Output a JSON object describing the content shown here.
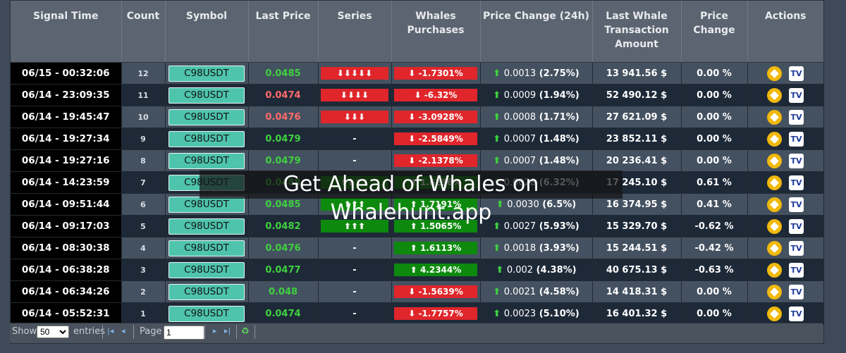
{
  "table": {
    "columns": [
      "Signal Time",
      "Count",
      "Symbol",
      "Last Price",
      "Series",
      "Whales Purchases",
      "Price Change (24h)",
      "Last Whale Transaction Amount",
      "Price Change",
      "Actions"
    ],
    "rows": [
      {
        "time": "06/15 - 00:32:06",
        "count": "12",
        "symbol": "C98USDT",
        "price": "0.0485",
        "priceColor": "#3fd13f",
        "series": "⬇⬇⬇⬇⬇",
        "seriesColor": "red",
        "purch": "⬇ -1.7301%",
        "purchColor": "red",
        "chgVal": "0.0013",
        "chgPct": "(2.75%)",
        "amount": "13 941.56 $",
        "pchg": "0.00 %"
      },
      {
        "time": "06/14 - 23:09:35",
        "count": "11",
        "symbol": "C98USDT",
        "price": "0.0474",
        "priceColor": "#ff6b6b",
        "series": "⬇⬇⬇⬇",
        "seriesColor": "red",
        "purch": "⬇ -6.32%",
        "purchColor": "red",
        "chgVal": "0.0009",
        "chgPct": "(1.94%)",
        "amount": "52 490.12 $",
        "pchg": "0.00 %"
      },
      {
        "time": "06/14 - 19:45:47",
        "count": "10",
        "symbol": "C98USDT",
        "price": "0.0476",
        "priceColor": "#ff6b6b",
        "series": "⬇⬇⬇",
        "seriesColor": "red",
        "purch": "⬇ -3.0928%",
        "purchColor": "red",
        "chgVal": "0.0008",
        "chgPct": "(1.71%)",
        "amount": "27 621.09 $",
        "pchg": "0.00 %"
      },
      {
        "time": "06/14 - 19:27:34",
        "count": "9",
        "symbol": "C98USDT",
        "price": "0.0479",
        "priceColor": "#3fd13f",
        "series": "-",
        "seriesColor": "none",
        "purch": "⬇ -2.5849%",
        "purchColor": "red",
        "chgVal": "0.0007",
        "chgPct": "(1.48%)",
        "amount": "23 852.11 $",
        "pchg": "0.00 %"
      },
      {
        "time": "06/14 - 19:27:16",
        "count": "8",
        "symbol": "C98USDT",
        "price": "0.0479",
        "priceColor": "#3fd13f",
        "series": "-",
        "seriesColor": "none",
        "purch": "⬇ -2.1378%",
        "purchColor": "red",
        "chgVal": "0.0007",
        "chgPct": "(1.48%)",
        "amount": "20 236.41 $",
        "pchg": "0.00 %"
      },
      {
        "time": "06/14 - 14:23:59",
        "count": "7",
        "symbol": "C98USDT",
        "price": "0.0488",
        "priceColor": "#3fd13f",
        "series": "⬆⬆⬆⬆",
        "seriesColor": "green",
        "purch": "⬆ 1.6236%",
        "purchColor": "green",
        "chgVal": "0.0028",
        "chgPct": "(6.32%)",
        "amount": "17 245.10 $",
        "pchg": "0.61 %"
      },
      {
        "time": "06/14 - 09:51:44",
        "count": "6",
        "symbol": "C98USDT",
        "price": "0.0485",
        "priceColor": "#3fd13f",
        "series": "⬆⬆⬆",
        "seriesColor": "green",
        "purch": "⬆ 1.7191%",
        "purchColor": "green",
        "chgVal": "0.0030",
        "chgPct": "(6.5%)",
        "amount": "16 374.95 $",
        "pchg": "0.41 %"
      },
      {
        "time": "06/14 - 09:17:03",
        "count": "5",
        "symbol": "C98USDT",
        "price": "0.0482",
        "priceColor": "#3fd13f",
        "series": "⬆⬆⬆",
        "seriesColor": "green",
        "purch": "⬆ 1.5065%",
        "purchColor": "green",
        "chgVal": "0.0027",
        "chgPct": "(5.93%)",
        "amount": "15 329.70 $",
        "pchg": "-0.62 %"
      },
      {
        "time": "06/14 - 08:30:38",
        "count": "4",
        "symbol": "C98USDT",
        "price": "0.0476",
        "priceColor": "#3fd13f",
        "series": "-",
        "seriesColor": "none",
        "purch": "⬆ 1.6113%",
        "purchColor": "green",
        "chgVal": "0.0018",
        "chgPct": "(3.93%)",
        "amount": "15 244.51 $",
        "pchg": "-0.42 %"
      },
      {
        "time": "06/14 - 06:38:28",
        "count": "3",
        "symbol": "C98USDT",
        "price": "0.0477",
        "priceColor": "#3fd13f",
        "series": "-",
        "seriesColor": "none",
        "purch": "⬆ 4.2344%",
        "purchColor": "green",
        "chgVal": "0.002",
        "chgPct": "(4.38%)",
        "amount": "40 675.13 $",
        "pchg": "-0.63 %"
      },
      {
        "time": "06/14 - 06:34:26",
        "count": "2",
        "symbol": "C98USDT",
        "price": "0.048",
        "priceColor": "#3fd13f",
        "series": "-",
        "seriesColor": "none",
        "purch": "⬇ -1.5639%",
        "purchColor": "red",
        "chgVal": "0.0021",
        "chgPct": "(4.58%)",
        "amount": "14 418.31 $",
        "pchg": "0.00 %"
      },
      {
        "time": "06/14 - 05:52:31",
        "count": "1",
        "symbol": "C98USDT",
        "price": "0.0474",
        "priceColor": "#3fd13f",
        "series": "-",
        "seriesColor": "none",
        "purch": "⬇ -1.7757%",
        "purchColor": "red",
        "chgVal": "0.0023",
        "chgPct": "(5.10%)",
        "amount": "16 401.32 $",
        "pchg": "0.00 %"
      }
    ]
  },
  "pager": {
    "show_label": "Show",
    "page_size": "50",
    "entries_label": "entries",
    "page_label": "Page",
    "page_value": "1"
  },
  "overlay": {
    "text": "Get Ahead of Whales on Whalehunt.app"
  }
}
